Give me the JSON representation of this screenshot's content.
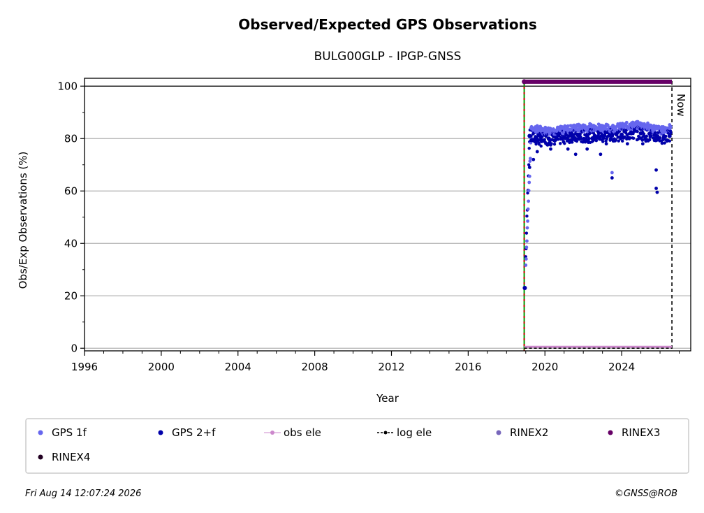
{
  "chart_data": {
    "type": "scatter",
    "title": "Observed/Expected GPS Observations",
    "subtitle": "BULG00GLP - IPGP-GNSS",
    "xlabel": "Year",
    "ylabel": "Obs/Exp Observations (%)",
    "xlim": [
      1996,
      2027.6
    ],
    "ylim": [
      -1,
      103
    ],
    "x_ticks": [
      "1996",
      "2000",
      "2004",
      "2008",
      "2012",
      "2016",
      "2020",
      "2024"
    ],
    "y_ticks": [
      "0",
      "20",
      "40",
      "60",
      "80",
      "100"
    ],
    "grid": "horizontal",
    "reference_line_y": 100,
    "now_label": "Now",
    "now_x": 2026.62,
    "start_x": 2018.92,
    "legend_placement": "bottom",
    "series": [
      {
        "name": "GPS 1f",
        "color": "#6666ee",
        "marker": "dot",
        "x": [
          2018.95,
          2019.3,
          2019.6,
          2020.1,
          2020.6,
          2021.1,
          2021.6,
          2022.1,
          2022.6,
          2023.1,
          2023.6,
          2024.1,
          2024.6,
          2025.1,
          2025.6,
          2026.1,
          2026.5
        ],
        "y": [
          23,
          84,
          83.5,
          83,
          83,
          83.5,
          84,
          84,
          84.5,
          84,
          84,
          84.5,
          85,
          85,
          84,
          83,
          84
        ]
      },
      {
        "name": "GPS 2+f",
        "color": "#0000aa",
        "marker": "dot",
        "x": [
          2018.95,
          2019.2,
          2019.5,
          2019.8,
          2020.2,
          2020.6,
          2021.0,
          2021.4,
          2021.8,
          2022.2,
          2022.6,
          2023.0,
          2023.5,
          2024.0,
          2024.5,
          2025.0,
          2025.5,
          2025.8,
          2026.2,
          2026.5
        ],
        "y": [
          23,
          81,
          80,
          79.5,
          80,
          80,
          80.5,
          81,
          80.5,
          81,
          81,
          81,
          81.5,
          81.5,
          82,
          82,
          81,
          81,
          80.5,
          81
        ]
      },
      {
        "name": "obs ele",
        "color": "#cc88cc",
        "marker": "line-dot",
        "x": [
          2018.92,
          2026.62
        ],
        "y": [
          0,
          0
        ]
      },
      {
        "name": "log ele",
        "color": "#000000",
        "marker": "dashed-line-dot",
        "x": [
          2018.92,
          2026.62
        ],
        "y": [
          0,
          0
        ]
      },
      {
        "name": "RINEX2",
        "color": "#7766bb",
        "marker": "dot",
        "x": [],
        "y": []
      },
      {
        "name": "RINEX3",
        "color": "#660066",
        "marker": "dot",
        "x": [
          2018.92,
          2026.62
        ],
        "y": [
          101.7,
          101.7
        ]
      },
      {
        "name": "RINEX4",
        "color": "#220022",
        "marker": "dot",
        "x": [],
        "y": []
      }
    ]
  },
  "footer": {
    "timestamp": "Fri Aug 14 12:07:24 2026",
    "credit": "©GNSS@ROB"
  }
}
